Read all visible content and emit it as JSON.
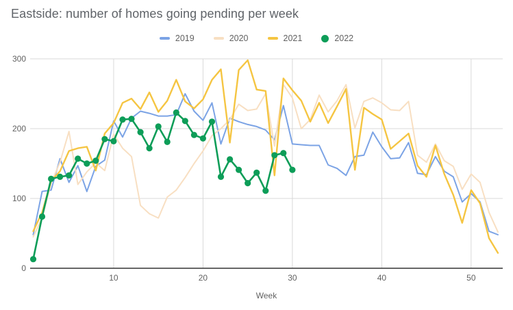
{
  "title": "Eastside: number of homes going pending per week",
  "chart_data": {
    "type": "line",
    "title": "Eastside: number of homes going pending per week",
    "xlabel": "Week",
    "ylabel": "",
    "xlim": [
      1,
      53
    ],
    "ylim": [
      0,
      300
    ],
    "x_ticks": [
      10,
      20,
      30,
      40,
      50
    ],
    "y_ticks": [
      0,
      100,
      200,
      300
    ],
    "grid": true,
    "legend_position": "top",
    "x_unit": "week number, weeks 1-53",
    "series": [
      {
        "name": "2019",
        "color": "#7ba3e5",
        "style": "line",
        "values": [
          48,
          110,
          112,
          157,
          123,
          147,
          110,
          146,
          155,
          211,
          188,
          215,
          225,
          222,
          218,
          218,
          220,
          250,
          225,
          212,
          237,
          178,
          215,
          210,
          206,
          203,
          198,
          184,
          233,
          178,
          177,
          176,
          176,
          148,
          143,
          133,
          160,
          162,
          195,
          174,
          157,
          158,
          180,
          136,
          134,
          160,
          139,
          131,
          95,
          107,
          95,
          53,
          48
        ]
      },
      {
        "name": "2020",
        "color": "#f8dfc2",
        "style": "line",
        "values": [
          45,
          72,
          122,
          152,
          196,
          120,
          138,
          151,
          140,
          192,
          172,
          160,
          90,
          78,
          72,
          102,
          112,
          130,
          150,
          168,
          190,
          200,
          213,
          235,
          226,
          228,
          250,
          175,
          263,
          244,
          200,
          213,
          248,
          224,
          240,
          263,
          201,
          239,
          244,
          237,
          227,
          226,
          239,
          162,
          152,
          178,
          154,
          146,
          113,
          135,
          123,
          80,
          52
        ]
      },
      {
        "name": "2021",
        "color": "#f5c542",
        "style": "line",
        "values": [
          53,
          80,
          125,
          139,
          168,
          172,
          174,
          140,
          193,
          208,
          237,
          243,
          228,
          252,
          224,
          240,
          270,
          239,
          229,
          242,
          270,
          285,
          180,
          284,
          298,
          256,
          254,
          133,
          272,
          255,
          240,
          210,
          237,
          208,
          232,
          257,
          141,
          230,
          221,
          213,
          171,
          182,
          193,
          147,
          131,
          176,
          135,
          105,
          65,
          112,
          93,
          43,
          22
        ]
      },
      {
        "name": "2022",
        "color": "#0d9d58",
        "style": "line+markers",
        "values": [
          13,
          74,
          128,
          131,
          133,
          157,
          150,
          154,
          185,
          182,
          213,
          214,
          195,
          172,
          203,
          181,
          223,
          211,
          191,
          186,
          210,
          131,
          156,
          141,
          122,
          137,
          111,
          162,
          165,
          141
        ]
      }
    ]
  },
  "colors": {
    "grid": "#d9d9d9",
    "axis": "#333333",
    "tick_text": "#616161",
    "title_text": "#5f6368",
    "background": "#ffffff"
  }
}
